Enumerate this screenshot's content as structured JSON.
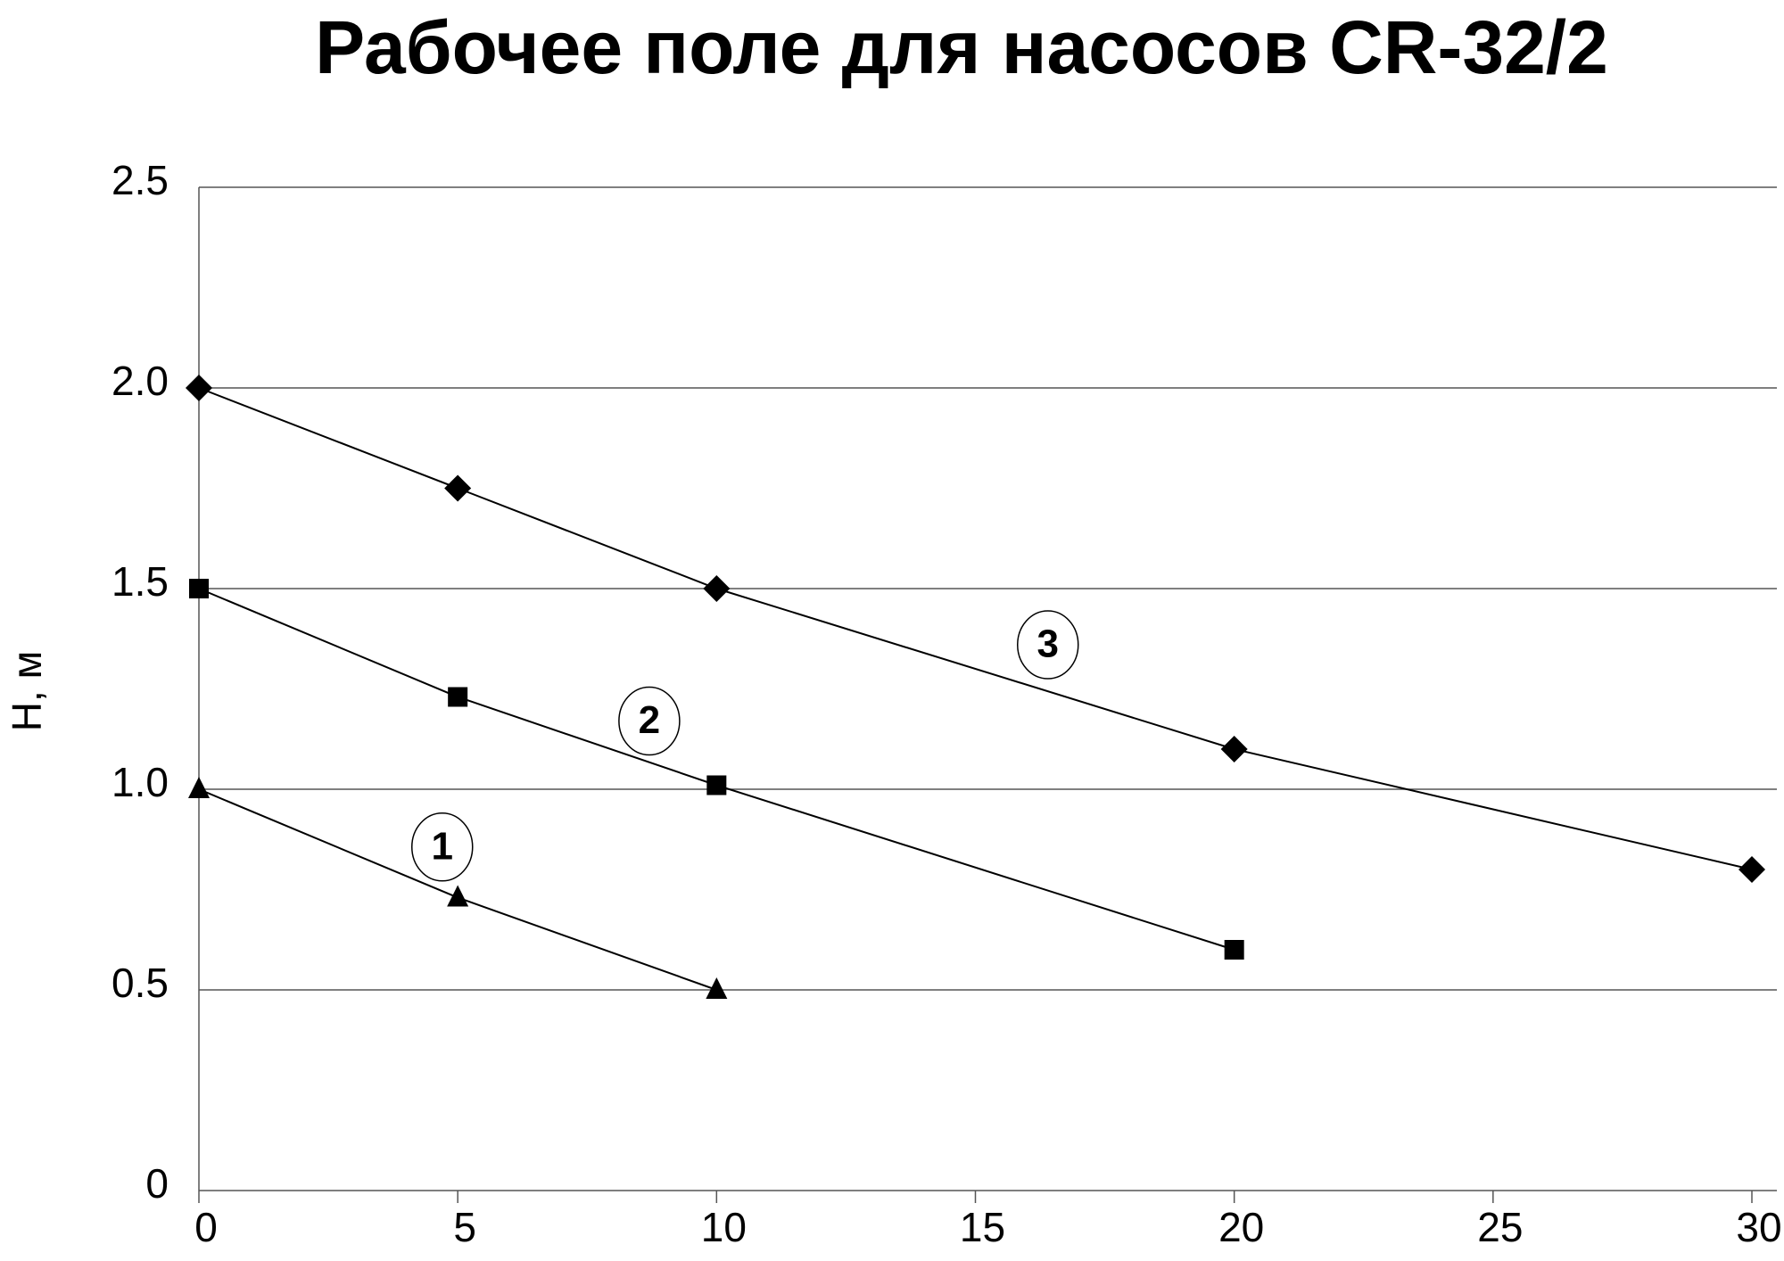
{
  "chart_data": {
    "type": "line",
    "title": "Рабочее поле для насосов CR-32/2",
    "y_label": "H, м",
    "xlim": [
      0,
      30
    ],
    "xticks": [
      0,
      5,
      10,
      15,
      20,
      25,
      30
    ],
    "ylim": [
      0,
      2.5
    ],
    "yticks": [
      0,
      0.5,
      {
        "value": 1,
        "label": "1.0"
      },
      1.5,
      {
        "value": 2,
        "label": "2.0"
      },
      2.5
    ],
    "grid": true,
    "color": "#000000",
    "series": [
      {
        "name": "1",
        "marker": "triangle",
        "x": [
          0,
          5,
          10
        ],
        "values": [
          1.0,
          0.73,
          0.5
        ]
      },
      {
        "name": "2",
        "marker": "square",
        "x": [
          0,
          5,
          10,
          20
        ],
        "values": [
          1.5,
          1.23,
          1.01,
          0.6
        ]
      },
      {
        "name": "3",
        "marker": "diamond",
        "x": [
          0,
          5,
          10,
          20,
          30
        ],
        "values": [
          2.0,
          1.75,
          1.5,
          1.1,
          0.8
        ]
      }
    ]
  }
}
